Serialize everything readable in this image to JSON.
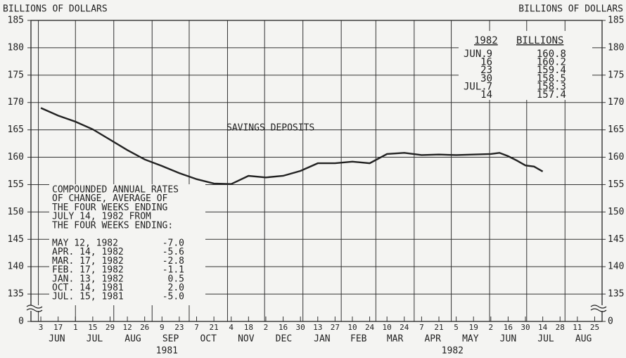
{
  "chart_data": {
    "type": "line",
    "ylabel": "BILLIONS OF DOLLARS",
    "y2label": "BILLIONS OF DOLLARS",
    "x": [
      "1981-06-03",
      "1981-06-17",
      "1981-07-01",
      "1981-07-15",
      "1981-07-29",
      "1981-08-12",
      "1981-08-26",
      "1981-09-09",
      "1981-09-23",
      "1981-10-07",
      "1981-10-21",
      "1981-11-04",
      "1981-11-18",
      "1981-12-02",
      "1981-12-16",
      "1981-12-30",
      "1982-01-13",
      "1982-01-27",
      "1982-02-10",
      "1982-02-24",
      "1982-03-10",
      "1982-03-24",
      "1982-04-07",
      "1982-04-21",
      "1982-05-05",
      "1982-05-19",
      "1982-06-02",
      "1982-06-09",
      "1982-06-16",
      "1982-06-23",
      "1982-06-30",
      "1982-07-07",
      "1982-07-14"
    ],
    "series": [
      {
        "name": "SAVINGS DEPOSITS",
        "color": "#222222",
        "values": [
          169.0,
          167.6,
          166.5,
          165.1,
          163.2,
          161.3,
          159.6,
          158.4,
          157.1,
          156.0,
          155.2,
          155.1,
          156.6,
          156.3,
          156.6,
          157.5,
          158.9,
          158.9,
          159.2,
          158.9,
          160.6,
          160.8,
          160.4,
          160.5,
          160.4,
          160.5,
          160.6,
          160.8,
          160.2,
          159.4,
          158.5,
          158.3,
          157.4
        ]
      }
    ],
    "xlim": [
      "1981-05-26",
      "1982-08-31"
    ],
    "xticks": [
      {
        "value": "1981-06-03",
        "label": "3"
      },
      {
        "value": "1981-06-17",
        "label": "17"
      },
      {
        "value": "1981-07-01",
        "label": "1"
      },
      {
        "value": "1981-07-15",
        "label": "15"
      },
      {
        "value": "1981-07-29",
        "label": "29"
      },
      {
        "value": "1981-08-12",
        "label": "12"
      },
      {
        "value": "1981-08-26",
        "label": "26"
      },
      {
        "value": "1981-09-09",
        "label": "9"
      },
      {
        "value": "1981-09-23",
        "label": "23"
      },
      {
        "value": "1981-10-07",
        "label": "7"
      },
      {
        "value": "1981-10-21",
        "label": "21"
      },
      {
        "value": "1981-11-04",
        "label": "4"
      },
      {
        "value": "1981-11-18",
        "label": "18"
      },
      {
        "value": "1981-12-02",
        "label": "2"
      },
      {
        "value": "1981-12-16",
        "label": "16"
      },
      {
        "value": "1981-12-30",
        "label": "30"
      },
      {
        "value": "1982-01-13",
        "label": "13"
      },
      {
        "value": "1982-01-27",
        "label": "27"
      },
      {
        "value": "1982-02-10",
        "label": "10"
      },
      {
        "value": "1982-02-24",
        "label": "24"
      },
      {
        "value": "1982-03-10",
        "label": "10"
      },
      {
        "value": "1982-03-24",
        "label": "24"
      },
      {
        "value": "1982-04-07",
        "label": "7"
      },
      {
        "value": "1982-04-21",
        "label": "21"
      },
      {
        "value": "1982-05-05",
        "label": "5"
      },
      {
        "value": "1982-05-19",
        "label": "19"
      },
      {
        "value": "1982-06-02",
        "label": "2"
      },
      {
        "value": "1982-06-16",
        "label": "16"
      },
      {
        "value": "1982-06-30",
        "label": "30"
      },
      {
        "value": "1982-07-14",
        "label": "14"
      },
      {
        "value": "1982-07-28",
        "label": "28"
      },
      {
        "value": "1982-08-11",
        "label": "11"
      },
      {
        "value": "1982-08-25",
        "label": "25"
      }
    ],
    "month_labels": [
      {
        "value": "1981-06",
        "label": "JUN"
      },
      {
        "value": "1981-07",
        "label": "JUL"
      },
      {
        "value": "1981-08",
        "label": "AUG"
      },
      {
        "value": "1981-09",
        "label": "SEP"
      },
      {
        "value": "1981-10",
        "label": "OCT"
      },
      {
        "value": "1981-11",
        "label": "NOV"
      },
      {
        "value": "1981-12",
        "label": "DEC"
      },
      {
        "value": "1982-01",
        "label": "JAN"
      },
      {
        "value": "1982-02",
        "label": "FEB"
      },
      {
        "value": "1982-03",
        "label": "MAR"
      },
      {
        "value": "1982-04",
        "label": "APR"
      },
      {
        "value": "1982-05",
        "label": "MAY"
      },
      {
        "value": "1982-06",
        "label": "JUN"
      },
      {
        "value": "1982-07",
        "label": "JUL"
      },
      {
        "value": "1982-08",
        "label": "AUG"
      }
    ],
    "year_labels": [
      {
        "value": "1981",
        "label": "1981"
      },
      {
        "value": "1982",
        "label": "1982"
      }
    ],
    "ylim": [
      0,
      185
    ],
    "yticks": [
      {
        "value": 0,
        "label": "0"
      },
      135,
      140,
      145,
      150,
      155,
      160,
      165,
      170,
      175,
      180,
      185
    ],
    "axis_break": true,
    "grid": true,
    "recent_table": {
      "header": [
        "1982",
        "BILLIONS"
      ],
      "rows": [
        {
          "month": "JUN.",
          "day": "9",
          "value": "160.8"
        },
        {
          "day": "16",
          "value": "160.2"
        },
        {
          "day": "23",
          "value": "159.4"
        },
        {
          "day": "30",
          "value": "158.5"
        },
        {
          "month": "JUL.",
          "day": "7",
          "value": "158.3"
        },
        {
          "day": "14",
          "value": "157.4"
        }
      ]
    },
    "rates_box": {
      "lines": [
        "COMPOUNDED ANNUAL RATES",
        "OF CHANGE, AVERAGE OF",
        "THE FOUR WEEKS ENDING",
        "JULY 14, 1982 FROM",
        "THE FOUR WEEKS ENDING:"
      ],
      "rows": [
        {
          "date": "MAY 12, 1982",
          "rate": "-7.0"
        },
        {
          "date": "APR. 14, 1982",
          "rate": "-5.6"
        },
        {
          "date": "MAR. 17, 1982",
          "rate": "-2.8"
        },
        {
          "date": "FEB. 17, 1982",
          "rate": "-1.1"
        },
        {
          "date": "JAN. 13, 1982",
          "rate": "0.5"
        },
        {
          "date": "OCT. 14, 1981",
          "rate": "2.0"
        },
        {
          "date": "JUL. 15, 1981",
          "rate": "-5.0"
        }
      ]
    }
  }
}
